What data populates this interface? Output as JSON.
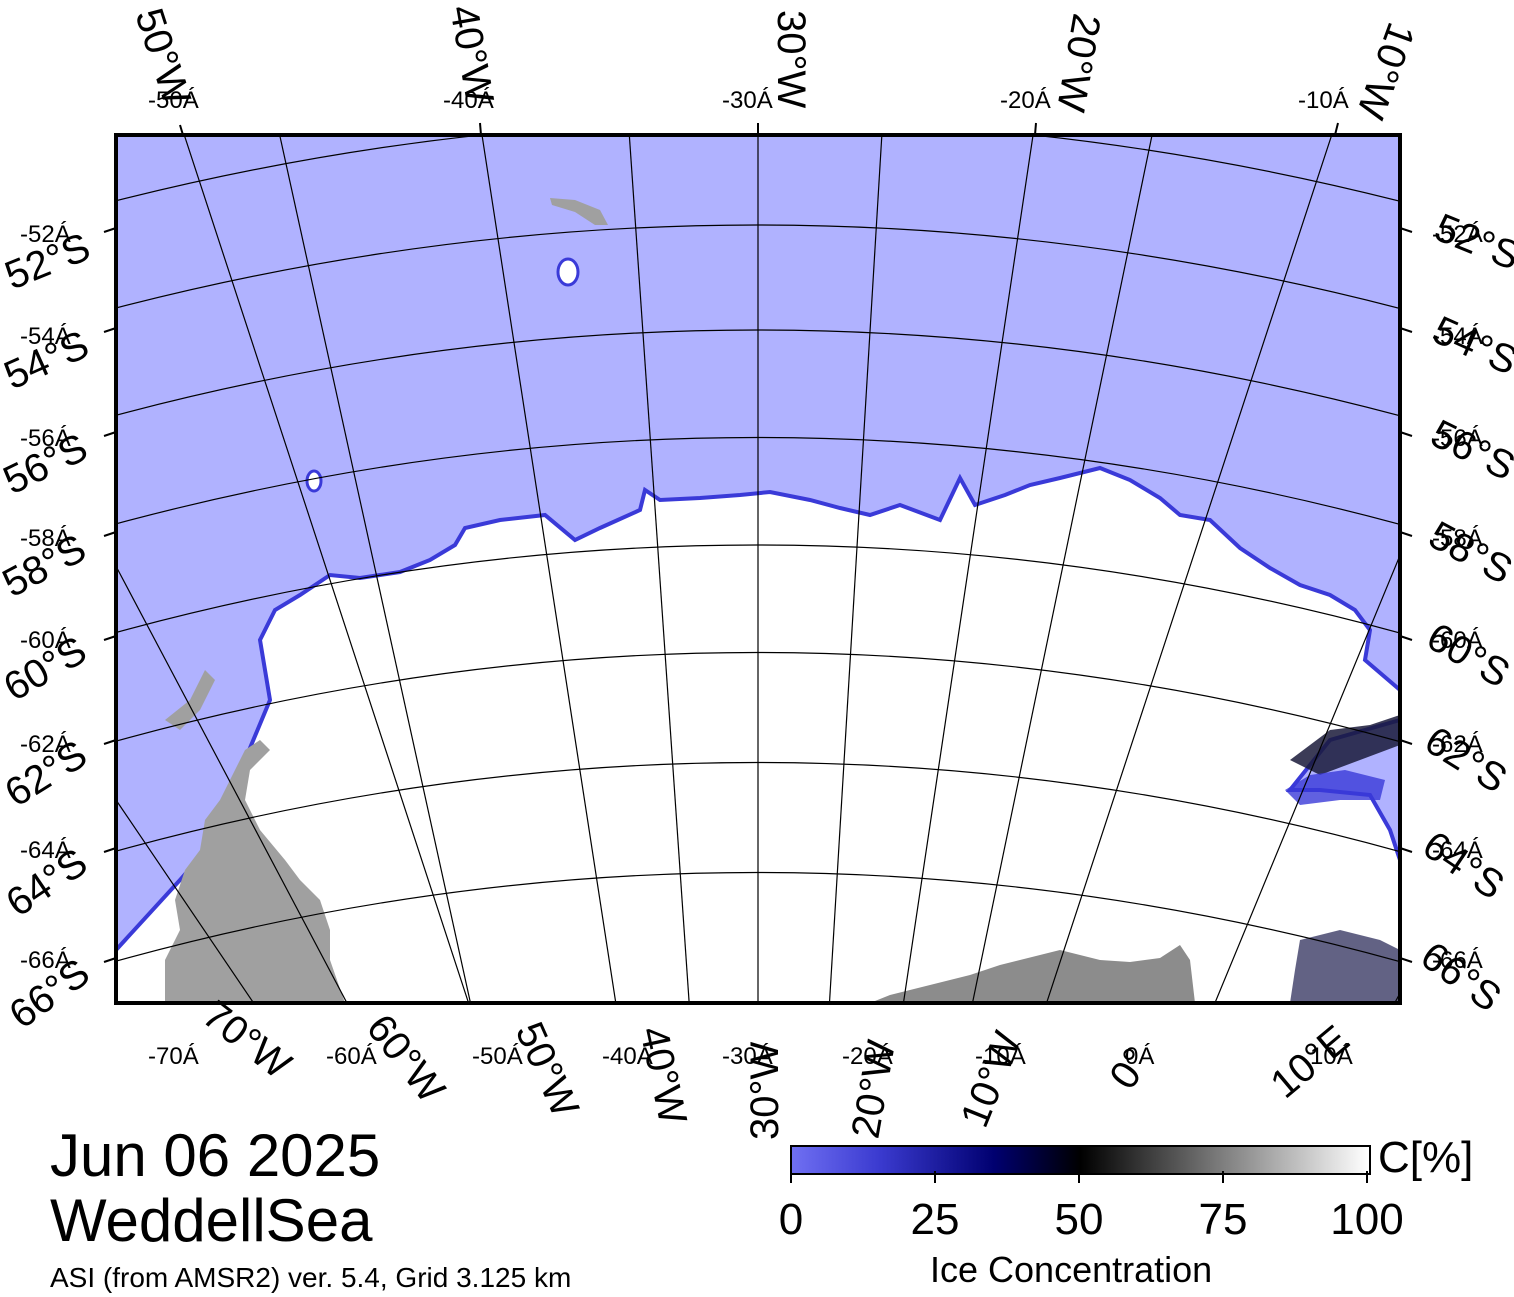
{
  "map": {
    "frame_labels": {
      "top": [
        {
          "big": "50°W",
          "small": "-50Á"
        },
        {
          "big": "40°W",
          "small": "-40Á"
        },
        {
          "big": "30°W",
          "small": "-30Á"
        },
        {
          "big": "20°W",
          "small": "-20Á"
        },
        {
          "big": "10°W",
          "small": "-10Á"
        }
      ],
      "bottom": [
        {
          "big": "70°W",
          "small": "-70Á"
        },
        {
          "big": "60°W",
          "small": "-60Á"
        },
        {
          "big": "50°W",
          "small": "-50Á"
        },
        {
          "big": "40°W",
          "small": "-40Á"
        },
        {
          "big": "30°W",
          "small": "-30Á"
        },
        {
          "big": "20°W",
          "small": "-20Á"
        },
        {
          "big": "10°W",
          "small": "-10Á"
        },
        {
          "big": "0°",
          "small": "0Á"
        },
        {
          "big": "10°E",
          "small": "10Á"
        }
      ],
      "left": [
        {
          "big": "52°S",
          "small": "-52Á"
        },
        {
          "big": "54°S",
          "small": "-54Á"
        },
        {
          "big": "56°S",
          "small": "-56Á"
        },
        {
          "big": "58°S",
          "small": "-58Á"
        },
        {
          "big": "60°S",
          "small": "-60Á"
        },
        {
          "big": "62°S",
          "small": "-62Á"
        },
        {
          "big": "64°S",
          "small": "-64Á"
        },
        {
          "big": "66°S",
          "small": "-66Á"
        }
      ],
      "right": [
        {
          "big": "52°S",
          "small": "-52Á"
        },
        {
          "big": "54°S",
          "small": "-54Á"
        },
        {
          "big": "56°S",
          "small": "-56Á"
        },
        {
          "big": "58°S",
          "small": "-58Á"
        },
        {
          "big": "60°S",
          "small": "-60Á"
        },
        {
          "big": "62°S",
          "small": "-62Á"
        },
        {
          "big": "64°S",
          "small": "-64Á"
        },
        {
          "big": "66°S",
          "small": "-66Á"
        }
      ]
    },
    "colors": {
      "open_water": "#b0b2ff",
      "sea_ice": "#ffffff",
      "land": "#a0a0a0",
      "land_dark": "#8c8c8c",
      "ice_edge": "#3a3ad8",
      "grid": "#000000"
    }
  },
  "info": {
    "date": "Jun 06 2025",
    "region": "WeddellSea",
    "product": "ASI (from AMSR2) ver. 5.4,  Grid 3.125 km"
  },
  "colorbar": {
    "unit": "C[%]",
    "title": "Ice Concentration",
    "ticks": [
      "0",
      "25",
      "50",
      "75",
      "100"
    ],
    "range": [
      0,
      100
    ],
    "stops": [
      "#6f6ff2",
      "#000070",
      "#000000",
      "#808080",
      "#ffffff"
    ]
  }
}
